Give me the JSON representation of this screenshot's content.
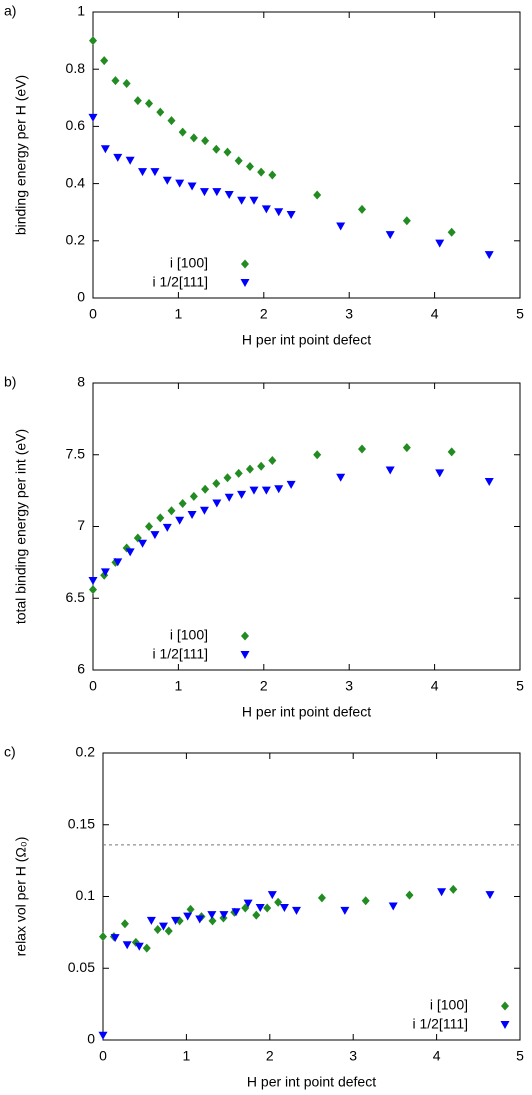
{
  "chart_data": [
    {
      "type": "scatter",
      "panel": "a)",
      "xlabel": "H per int point defect",
      "ylabel": "binding energy per H (eV)",
      "xlim": [
        0,
        5
      ],
      "xticks": [
        0,
        1,
        2,
        3,
        4,
        5
      ],
      "ylim": [
        0,
        1
      ],
      "yticks": [
        0,
        0.2,
        0.4,
        0.6,
        0.8,
        1
      ],
      "legend": "lower center",
      "series": [
        {
          "name": "i [100]",
          "color": "#228b22",
          "marker": "diamond",
          "x": [
            0,
            0.131,
            0.263,
            0.394,
            0.525,
            0.656,
            0.788,
            0.919,
            1.05,
            1.181,
            1.313,
            1.444,
            1.575,
            1.706,
            1.838,
            1.969,
            2.1,
            2.625,
            3.15,
            3.675,
            4.2
          ],
          "values": [
            0.9,
            0.83,
            0.76,
            0.75,
            0.69,
            0.68,
            0.65,
            0.62,
            0.58,
            0.56,
            0.55,
            0.52,
            0.51,
            0.48,
            0.46,
            0.44,
            0.43,
            0.36,
            0.31,
            0.27,
            0.23
          ]
        },
        {
          "name": "i 1/2[111]",
          "color": "#0000ff",
          "marker": "triangle-down",
          "x": [
            0,
            0.145,
            0.29,
            0.435,
            0.58,
            0.725,
            0.87,
            1.015,
            1.16,
            1.305,
            1.45,
            1.595,
            1.74,
            1.885,
            2.03,
            2.175,
            2.32,
            2.9,
            3.48,
            4.06,
            4.64
          ],
          "values": [
            0.63,
            0.52,
            0.49,
            0.48,
            0.44,
            0.44,
            0.41,
            0.4,
            0.39,
            0.37,
            0.37,
            0.36,
            0.34,
            0.34,
            0.31,
            0.3,
            0.29,
            0.25,
            0.22,
            0.19,
            0.15
          ]
        }
      ]
    },
    {
      "type": "scatter",
      "panel": "b)",
      "xlabel": "H per int point defect",
      "ylabel": "total binding energy per int (eV)",
      "xlim": [
        0,
        5
      ],
      "xticks": [
        0,
        1,
        2,
        3,
        4,
        5
      ],
      "ylim": [
        6,
        8
      ],
      "yticks": [
        6,
        6.5,
        7,
        7.5,
        8
      ],
      "legend": "lower center",
      "series": [
        {
          "name": "i [100]",
          "color": "#228b22",
          "marker": "diamond",
          "x": [
            0,
            0.131,
            0.263,
            0.394,
            0.525,
            0.656,
            0.788,
            0.919,
            1.05,
            1.181,
            1.313,
            1.444,
            1.575,
            1.706,
            1.838,
            1.969,
            2.1,
            2.625,
            3.15,
            3.675,
            4.2
          ],
          "values": [
            6.56,
            6.66,
            6.75,
            6.85,
            6.92,
            7.0,
            7.06,
            7.11,
            7.16,
            7.21,
            7.26,
            7.3,
            7.34,
            7.37,
            7.4,
            7.42,
            7.46,
            7.5,
            7.54,
            7.55,
            7.52
          ]
        },
        {
          "name": "i 1/2[111]",
          "color": "#0000ff",
          "marker": "triangle-down",
          "x": [
            0,
            0.145,
            0.29,
            0.435,
            0.58,
            0.725,
            0.87,
            1.015,
            1.16,
            1.305,
            1.45,
            1.595,
            1.74,
            1.885,
            2.03,
            2.175,
            2.32,
            2.9,
            3.48,
            4.06,
            4.64
          ],
          "values": [
            6.62,
            6.68,
            6.75,
            6.82,
            6.88,
            6.94,
            6.99,
            7.04,
            7.08,
            7.11,
            7.16,
            7.2,
            7.22,
            7.25,
            7.25,
            7.26,
            7.29,
            7.34,
            7.39,
            7.37,
            7.31
          ]
        }
      ]
    },
    {
      "type": "scatter",
      "panel": "c)",
      "xlabel": "H per int point defect",
      "ylabel": "relax vol per H (Ω₀)",
      "xlim": [
        0,
        5
      ],
      "xticks": [
        0,
        1,
        2,
        3,
        4,
        5
      ],
      "ylim": [
        0,
        0.2
      ],
      "yticks": [
        0,
        0.05,
        0.1,
        0.15,
        0.2
      ],
      "legend": "lower right",
      "hline": 0.136,
      "series": [
        {
          "name": "i [100]",
          "color": "#228b22",
          "marker": "diamond",
          "x": [
            0,
            0.131,
            0.263,
            0.394,
            0.525,
            0.656,
            0.788,
            0.919,
            1.05,
            1.181,
            1.313,
            1.444,
            1.575,
            1.706,
            1.838,
            1.969,
            2.1,
            2.625,
            3.15,
            3.675,
            4.2
          ],
          "values": [
            0.072,
            0.072,
            0.081,
            0.068,
            0.064,
            0.077,
            0.076,
            0.083,
            0.091,
            0.086,
            0.083,
            0.085,
            0.089,
            0.092,
            0.087,
            0.092,
            0.096,
            0.099,
            0.097,
            0.101,
            0.105
          ]
        },
        {
          "name": "i 1/2[111]",
          "color": "#0000ff",
          "marker": "triangle-down",
          "x": [
            0,
            0.145,
            0.29,
            0.435,
            0.58,
            0.725,
            0.87,
            1.015,
            1.16,
            1.305,
            1.45,
            1.595,
            1.74,
            1.885,
            2.03,
            2.175,
            2.32,
            2.9,
            3.48,
            4.06,
            4.64
          ],
          "values": [
            0.003,
            0.071,
            0.066,
            0.065,
            0.083,
            0.079,
            0.083,
            0.086,
            0.084,
            0.087,
            0.087,
            0.089,
            0.095,
            0.092,
            0.101,
            0.092,
            0.09,
            0.09,
            0.093,
            0.103,
            0.101
          ]
        }
      ]
    }
  ]
}
